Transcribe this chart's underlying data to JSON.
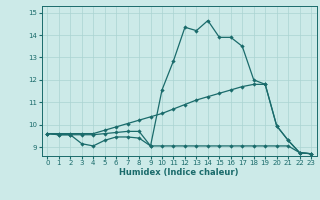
{
  "xlabel": "Humidex (Indice chaleur)",
  "bg_color": "#cceae8",
  "line_color": "#1a6b6b",
  "grid_color": "#aad4d2",
  "x_ticks": [
    0,
    1,
    2,
    3,
    4,
    5,
    6,
    7,
    8,
    9,
    10,
    11,
    12,
    13,
    14,
    15,
    16,
    17,
    18,
    19,
    20,
    21,
    22,
    23
  ],
  "y_ticks": [
    9,
    10,
    11,
    12,
    13,
    14,
    15
  ],
  "ylim": [
    8.6,
    15.3
  ],
  "xlim": [
    -0.5,
    23.5
  ],
  "line1_x": [
    0,
    1,
    2,
    3,
    4,
    5,
    6,
    7,
    8,
    9,
    10,
    11,
    12,
    13,
    14,
    15,
    16,
    17,
    18,
    19,
    20,
    21,
    22,
    23
  ],
  "line1_y": [
    9.6,
    9.55,
    9.55,
    9.15,
    9.05,
    9.3,
    9.45,
    9.45,
    9.4,
    9.05,
    11.55,
    12.85,
    14.35,
    14.2,
    14.65,
    13.9,
    13.9,
    13.5,
    12.0,
    11.8,
    9.95,
    9.3,
    8.75,
    8.7
  ],
  "line2_x": [
    0,
    1,
    2,
    3,
    4,
    5,
    6,
    7,
    8,
    9,
    10,
    11,
    12,
    13,
    14,
    15,
    16,
    17,
    18,
    19,
    20,
    21,
    22,
    23
  ],
  "line2_y": [
    9.6,
    9.55,
    9.55,
    9.55,
    9.55,
    9.6,
    9.65,
    9.7,
    9.7,
    9.05,
    9.05,
    9.05,
    9.05,
    9.05,
    9.05,
    9.05,
    9.05,
    9.05,
    9.05,
    9.05,
    9.05,
    9.05,
    8.75,
    8.7
  ],
  "line3_x": [
    0,
    1,
    2,
    3,
    4,
    5,
    6,
    7,
    8,
    9,
    10,
    11,
    12,
    13,
    14,
    15,
    16,
    17,
    18,
    19,
    20,
    21,
    22,
    23
  ],
  "line3_y": [
    9.6,
    9.6,
    9.6,
    9.6,
    9.6,
    9.75,
    9.9,
    10.05,
    10.2,
    10.35,
    10.5,
    10.7,
    10.9,
    11.1,
    11.25,
    11.4,
    11.55,
    11.7,
    11.8,
    11.8,
    9.95,
    9.3,
    8.75,
    8.7
  ]
}
